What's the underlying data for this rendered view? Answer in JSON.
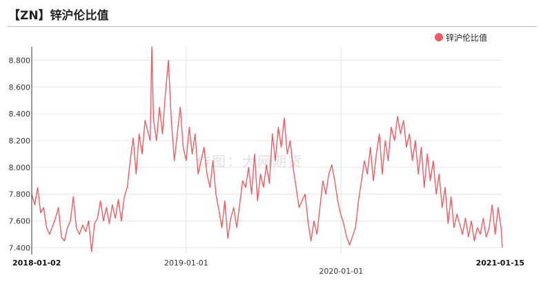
{
  "header": {
    "title": "【ZN】锌沪伦比值"
  },
  "watermark": "作图：大网期货",
  "legend": {
    "label": "锌沪伦比值",
    "color": "#f25a62"
  },
  "chart_data": {
    "type": "line",
    "title": "【ZN】锌沪伦比值",
    "series": [
      {
        "name": "锌沪伦比值",
        "color": "#f25a62"
      }
    ],
    "x_range": [
      "2018-01-02",
      "2021-01-15"
    ],
    "x_tick_labels": [
      "2018-01-02",
      "2019-01-01",
      "2020-01-01",
      "2021-01-15"
    ],
    "y_range": [
      7.35,
      8.9
    ],
    "y_tick_labels": [
      "7.400",
      "7.600",
      "7.800",
      "8.000",
      "8.200",
      "8.400",
      "8.600",
      "8.800"
    ],
    "y_ticks": [
      7.4,
      7.6,
      7.8,
      8.0,
      8.2,
      8.4,
      8.6,
      8.8
    ],
    "grid": true,
    "legend_position": "top-right",
    "points": [
      [
        "2018-01-02",
        7.8
      ],
      [
        "2018-01-09",
        7.72
      ],
      [
        "2018-01-16",
        7.85
      ],
      [
        "2018-01-23",
        7.66
      ],
      [
        "2018-01-30",
        7.7
      ],
      [
        "2018-02-06",
        7.55
      ],
      [
        "2018-02-13",
        7.5
      ],
      [
        "2018-02-27",
        7.62
      ],
      [
        "2018-03-06",
        7.7
      ],
      [
        "2018-03-13",
        7.48
      ],
      [
        "2018-03-20",
        7.45
      ],
      [
        "2018-03-27",
        7.55
      ],
      [
        "2018-04-03",
        7.6
      ],
      [
        "2018-04-10",
        7.78
      ],
      [
        "2018-04-17",
        7.55
      ],
      [
        "2018-04-24",
        7.5
      ],
      [
        "2018-05-02",
        7.57
      ],
      [
        "2018-05-09",
        7.52
      ],
      [
        "2018-05-16",
        7.6
      ],
      [
        "2018-05-23",
        7.37
      ],
      [
        "2018-05-30",
        7.58
      ],
      [
        "2018-06-06",
        7.62
      ],
      [
        "2018-06-13",
        7.75
      ],
      [
        "2018-06-20",
        7.6
      ],
      [
        "2018-06-27",
        7.7
      ],
      [
        "2018-07-04",
        7.58
      ],
      [
        "2018-07-11",
        7.72
      ],
      [
        "2018-07-18",
        7.62
      ],
      [
        "2018-07-25",
        7.76
      ],
      [
        "2018-08-01",
        7.6
      ],
      [
        "2018-08-08",
        7.78
      ],
      [
        "2018-08-15",
        7.85
      ],
      [
        "2018-08-22",
        8.05
      ],
      [
        "2018-08-29",
        8.22
      ],
      [
        "2018-09-05",
        7.95
      ],
      [
        "2018-09-12",
        8.25
      ],
      [
        "2018-09-19",
        8.1
      ],
      [
        "2018-09-26",
        8.35
      ],
      [
        "2018-10-08",
        8.2
      ],
      [
        "2018-10-12",
        8.9
      ],
      [
        "2018-10-16",
        8.35
      ],
      [
        "2018-10-23",
        8.2
      ],
      [
        "2018-10-30",
        8.45
      ],
      [
        "2018-11-06",
        8.25
      ],
      [
        "2018-11-13",
        8.55
      ],
      [
        "2018-11-20",
        8.8
      ],
      [
        "2018-11-27",
        8.35
      ],
      [
        "2018-12-04",
        8.05
      ],
      [
        "2018-12-11",
        8.25
      ],
      [
        "2018-12-18",
        8.45
      ],
      [
        "2018-12-25",
        8.15
      ],
      [
        "2019-01-01",
        8.05
      ],
      [
        "2019-01-08",
        8.3
      ],
      [
        "2019-01-15",
        8.1
      ],
      [
        "2019-01-22",
        8.25
      ],
      [
        "2019-01-29",
        7.95
      ],
      [
        "2019-02-12",
        8.15
      ],
      [
        "2019-02-19",
        7.95
      ],
      [
        "2019-02-26",
        7.85
      ],
      [
        "2019-03-05",
        8.05
      ],
      [
        "2019-03-12",
        7.8
      ],
      [
        "2019-03-19",
        7.68
      ],
      [
        "2019-03-26",
        7.55
      ],
      [
        "2019-04-02",
        7.75
      ],
      [
        "2019-04-09",
        7.47
      ],
      [
        "2019-04-16",
        7.62
      ],
      [
        "2019-04-23",
        7.7
      ],
      [
        "2019-04-30",
        7.55
      ],
      [
        "2019-05-07",
        7.72
      ],
      [
        "2019-05-14",
        7.9
      ],
      [
        "2019-05-21",
        7.85
      ],
      [
        "2019-05-28",
        8.0
      ],
      [
        "2019-06-04",
        7.8
      ],
      [
        "2019-06-11",
        8.1
      ],
      [
        "2019-06-18",
        7.75
      ],
      [
        "2019-06-25",
        7.95
      ],
      [
        "2019-07-02",
        7.85
      ],
      [
        "2019-07-09",
        8.02
      ],
      [
        "2019-07-16",
        7.88
      ],
      [
        "2019-07-23",
        8.25
      ],
      [
        "2019-07-30",
        8.05
      ],
      [
        "2019-08-06",
        8.3
      ],
      [
        "2019-08-13",
        8.15
      ],
      [
        "2019-08-20",
        8.37
      ],
      [
        "2019-08-27",
        8.1
      ],
      [
        "2019-09-03",
        8.2
      ],
      [
        "2019-09-10",
        8.0
      ],
      [
        "2019-09-17",
        7.85
      ],
      [
        "2019-09-24",
        7.7
      ],
      [
        "2019-10-08",
        7.8
      ],
      [
        "2019-10-15",
        7.6
      ],
      [
        "2019-10-22",
        7.45
      ],
      [
        "2019-10-29",
        7.6
      ],
      [
        "2019-11-05",
        7.5
      ],
      [
        "2019-11-12",
        7.7
      ],
      [
        "2019-11-19",
        7.9
      ],
      [
        "2019-11-26",
        7.8
      ],
      [
        "2019-12-03",
        7.95
      ],
      [
        "2019-12-10",
        8.02
      ],
      [
        "2019-12-17",
        7.9
      ],
      [
        "2019-12-24",
        7.75
      ],
      [
        "2019-12-31",
        7.65
      ],
      [
        "2020-01-07",
        7.58
      ],
      [
        "2020-01-14",
        7.48
      ],
      [
        "2020-01-21",
        7.42
      ],
      [
        "2020-02-04",
        7.55
      ],
      [
        "2020-02-11",
        7.75
      ],
      [
        "2020-02-18",
        7.9
      ],
      [
        "2020-02-25",
        8.05
      ],
      [
        "2020-03-03",
        7.95
      ],
      [
        "2020-03-10",
        8.15
      ],
      [
        "2020-03-17",
        7.9
      ],
      [
        "2020-03-24",
        8.1
      ],
      [
        "2020-03-31",
        8.25
      ],
      [
        "2020-04-07",
        7.95
      ],
      [
        "2020-04-14",
        8.2
      ],
      [
        "2020-04-21",
        8.05
      ],
      [
        "2020-04-28",
        8.3
      ],
      [
        "2020-05-06",
        8.2
      ],
      [
        "2020-05-13",
        8.38
      ],
      [
        "2020-05-20",
        8.25
      ],
      [
        "2020-05-27",
        8.35
      ],
      [
        "2020-06-03",
        8.15
      ],
      [
        "2020-06-10",
        8.25
      ],
      [
        "2020-06-17",
        8.05
      ],
      [
        "2020-06-24",
        8.2
      ],
      [
        "2020-07-01",
        7.95
      ],
      [
        "2020-07-08",
        8.15
      ],
      [
        "2020-07-15",
        7.85
      ],
      [
        "2020-07-22",
        8.1
      ],
      [
        "2020-07-29",
        7.9
      ],
      [
        "2020-08-05",
        8.05
      ],
      [
        "2020-08-12",
        7.8
      ],
      [
        "2020-08-19",
        7.95
      ],
      [
        "2020-08-26",
        7.7
      ],
      [
        "2020-09-02",
        7.85
      ],
      [
        "2020-09-09",
        7.58
      ],
      [
        "2020-09-16",
        7.78
      ],
      [
        "2020-09-23",
        7.55
      ],
      [
        "2020-09-30",
        7.65
      ],
      [
        "2020-10-13",
        7.5
      ],
      [
        "2020-10-20",
        7.62
      ],
      [
        "2020-10-27",
        7.48
      ],
      [
        "2020-11-03",
        7.6
      ],
      [
        "2020-11-10",
        7.45
      ],
      [
        "2020-11-17",
        7.55
      ],
      [
        "2020-11-24",
        7.5
      ],
      [
        "2020-12-01",
        7.62
      ],
      [
        "2020-12-08",
        7.48
      ],
      [
        "2020-12-15",
        7.55
      ],
      [
        "2020-12-22",
        7.72
      ],
      [
        "2020-12-29",
        7.5
      ],
      [
        "2021-01-05",
        7.7
      ],
      [
        "2021-01-12",
        7.55
      ],
      [
        "2021-01-15",
        7.4
      ]
    ]
  }
}
